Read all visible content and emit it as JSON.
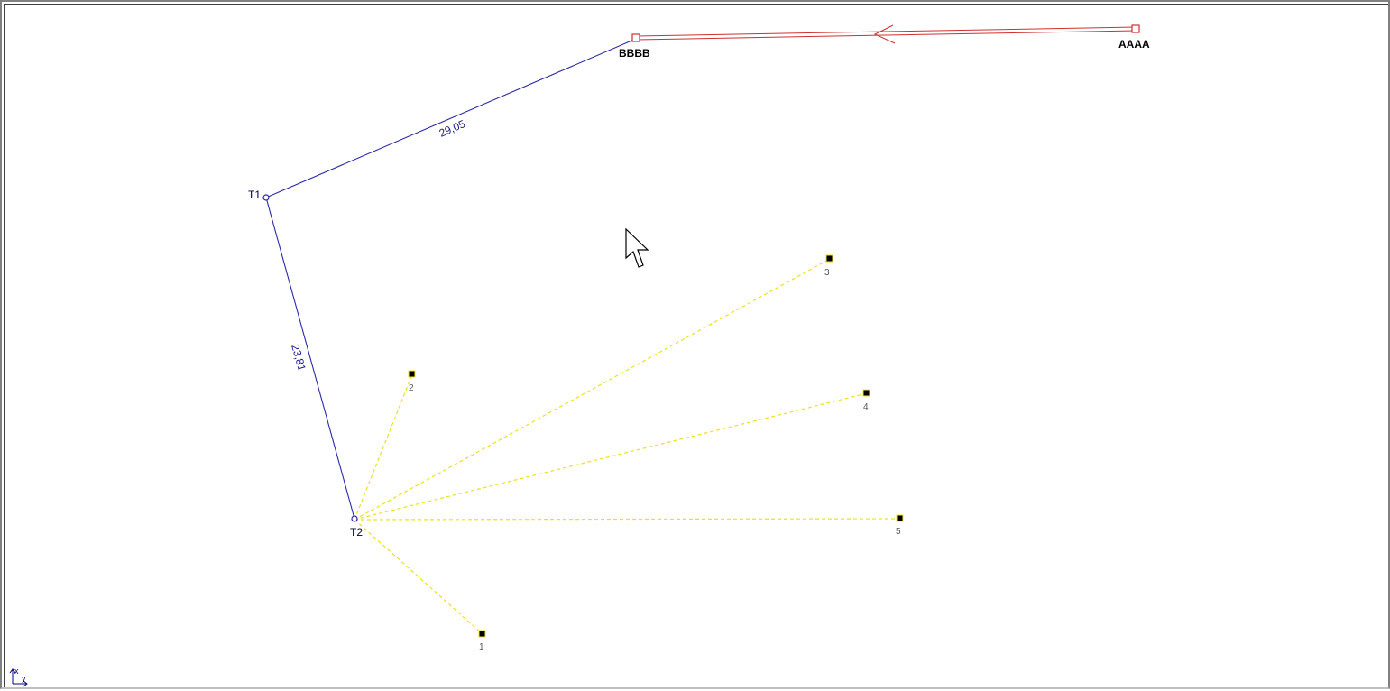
{
  "control_points": [
    {
      "id": "AAAA",
      "label": "AAAA"
    },
    {
      "id": "BBBB",
      "label": "BBBB"
    }
  ],
  "traverse": {
    "stations": [
      {
        "id": "T1",
        "label": "T1"
      },
      {
        "id": "T2",
        "label": "T2"
      }
    ],
    "legs": [
      {
        "from": "BBBB",
        "to": "T1",
        "distance": "29,05"
      },
      {
        "from": "T1",
        "to": "T2",
        "distance": "23,81"
      }
    ]
  },
  "detail_points": [
    {
      "id": "1",
      "label": "1"
    },
    {
      "id": "2",
      "label": "2"
    },
    {
      "id": "3",
      "label": "3"
    },
    {
      "id": "4",
      "label": "4"
    },
    {
      "id": "5",
      "label": "5"
    }
  ],
  "axis_indicator": {
    "x_label": "x",
    "y_label": "y"
  },
  "colors": {
    "control_line": "#d03030",
    "traverse_line": "#2a2aa8",
    "sideshot_line": "#f0e020",
    "point_fill": "#000000",
    "background": "#ffffff"
  },
  "icons": {
    "cursor": "mouse-pointer-icon",
    "axis": "xy-axis-icon"
  }
}
